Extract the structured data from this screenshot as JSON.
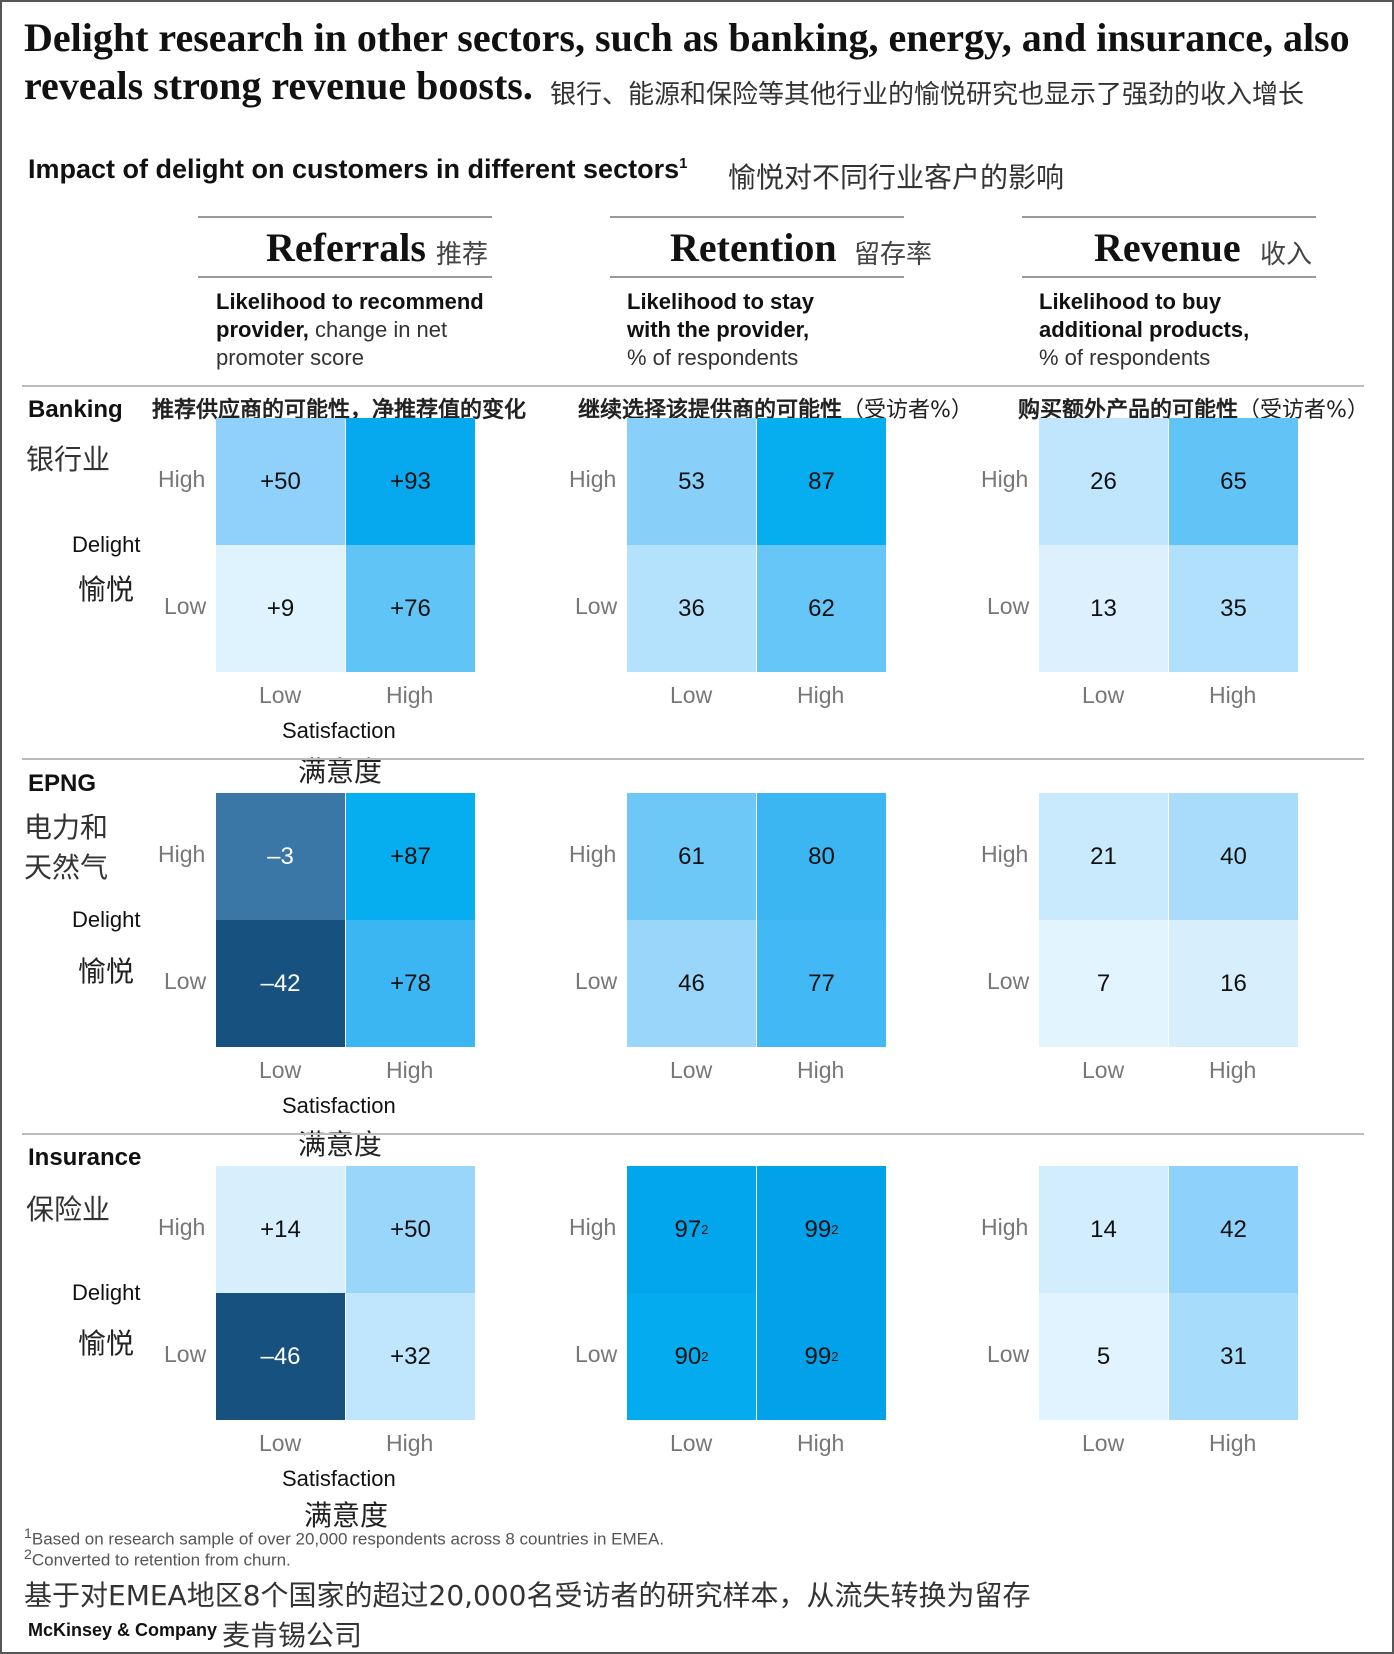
{
  "header": {
    "title_line1": "Delight research in other sectors, such as banking, energy, and insurance, also",
    "title_line2": "reveals strong revenue boosts.",
    "title_cn": "银行、能源和保险等其他行业的愉悦研究也显示了强劲的收入增长",
    "subtitle": "Impact of delight on customers in different sectors",
    "subtitle_sup": "1",
    "subtitle_cn": "愉悦对不同行业客户的影响"
  },
  "columns": [
    {
      "name": "Referrals",
      "name_cn": "推荐",
      "desc_bold_1": "Likelihood to recommend",
      "desc_bold_2": "provider,",
      "desc_rest_2": " change in net",
      "desc_line3": "promoter score"
    },
    {
      "name": "Retention",
      "name_cn": "留存率",
      "desc_bold_1": "Likelihood to stay",
      "desc_bold_2": "with the provider,",
      "desc_rest_2": "",
      "desc_line3": "% of respondents"
    },
    {
      "name": "Revenue",
      "name_cn": "收入",
      "desc_bold_1": "Likelihood to buy",
      "desc_bold_2": "additional products,",
      "desc_rest_2": "",
      "desc_line3": "% of respondents"
    }
  ],
  "row_labels_cn": {
    "col1": "推荐供应商的可能性，净推荐值的变化",
    "col2_bold": "继续选择该提供商的可能性",
    "col2_rest": "（受访者%）",
    "col3_bold": "购买额外产品的可能性",
    "col3_rest": "（受访者%）"
  },
  "axis": {
    "high": "High",
    "low": "Low",
    "delight": "Delight",
    "delight_cn": "愉悦",
    "satisfaction": "Satisfaction",
    "satisfaction_cn": "满意度"
  },
  "sectors": [
    {
      "name": "Banking",
      "name_cn": "银行业"
    },
    {
      "name": "EPNG",
      "name_cn": "电力和天然气"
    },
    {
      "name": "Insurance",
      "name_cn": "保险业"
    }
  ],
  "chart_data": {
    "type": "heatmap",
    "title": "Impact of delight on customers in different sectors",
    "x_axis": "Satisfaction",
    "y_axis": "Delight",
    "x_categories": [
      "Low",
      "High"
    ],
    "y_categories": [
      "High",
      "Low"
    ],
    "panels": [
      {
        "sector": "Banking",
        "metric": "Referrals",
        "cells": [
          [
            "+50",
            "+93"
          ],
          [
            "+9",
            "+76"
          ]
        ],
        "values": [
          [
            50,
            93
          ],
          [
            9,
            76
          ]
        ],
        "fills": [
          [
            "#8fd1fb",
            "#06a8ee"
          ],
          [
            "#dff3fe",
            "#60c4f6"
          ]
        ],
        "text": [
          [
            "#111",
            "#111"
          ],
          [
            "#111",
            "#111"
          ]
        ],
        "sup": [
          [
            "",
            ""
          ],
          [
            "",
            ""
          ]
        ]
      },
      {
        "sector": "Banking",
        "metric": "Retention",
        "cells": [
          [
            "53",
            "87"
          ],
          [
            "36",
            "62"
          ]
        ],
        "values": [
          [
            53,
            87
          ],
          [
            36,
            62
          ]
        ],
        "fills": [
          [
            "#88cffa",
            "#06aef0"
          ],
          [
            "#b4e2fc",
            "#66c6f7"
          ]
        ],
        "text": [
          [
            "#111",
            "#111"
          ],
          [
            "#111",
            "#111"
          ]
        ],
        "sup": [
          [
            "",
            ""
          ],
          [
            "",
            ""
          ]
        ]
      },
      {
        "sector": "Banking",
        "metric": "Revenue",
        "cells": [
          [
            "26",
            "65"
          ],
          [
            "13",
            "35"
          ]
        ],
        "values": [
          [
            26,
            65
          ],
          [
            13,
            35
          ]
        ],
        "fills": [
          [
            "#bfe6fc",
            "#62c4f6"
          ],
          [
            "#dcf1fd",
            "#b0e0fb"
          ]
        ],
        "text": [
          [
            "#111",
            "#111"
          ],
          [
            "#111",
            "#111"
          ]
        ],
        "sup": [
          [
            "",
            ""
          ],
          [
            "",
            ""
          ]
        ]
      },
      {
        "sector": "EPNG",
        "metric": "Referrals",
        "cells": [
          [
            "–3",
            "+87"
          ],
          [
            "–42",
            "+78"
          ]
        ],
        "values": [
          [
            -3,
            87
          ],
          [
            -42,
            78
          ]
        ],
        "fills": [
          [
            "#3a76a6",
            "#06aef0"
          ],
          [
            "#16517f",
            "#3cb6f3"
          ]
        ],
        "text": [
          [
            "#ffffff",
            "#111"
          ],
          [
            "#ffffff",
            "#111"
          ]
        ],
        "sup": [
          [
            "",
            ""
          ],
          [
            "",
            ""
          ]
        ]
      },
      {
        "sector": "EPNG",
        "metric": "Retention",
        "cells": [
          [
            "61",
            "80"
          ],
          [
            "46",
            "77"
          ]
        ],
        "values": [
          [
            61,
            80
          ],
          [
            46,
            77
          ]
        ],
        "fills": [
          [
            "#6ec8f7",
            "#3cb6f3"
          ],
          [
            "#9ad6fa",
            "#42b9f4"
          ]
        ],
        "text": [
          [
            "#111",
            "#111"
          ],
          [
            "#111",
            "#111"
          ]
        ],
        "sup": [
          [
            "",
            ""
          ],
          [
            "",
            ""
          ]
        ]
      },
      {
        "sector": "EPNG",
        "metric": "Revenue",
        "cells": [
          [
            "21",
            "40"
          ],
          [
            "7",
            "16"
          ]
        ],
        "values": [
          [
            21,
            40
          ],
          [
            7,
            16
          ]
        ],
        "fills": [
          [
            "#c9eafd",
            "#a9dcfb"
          ],
          [
            "#e2f4fe",
            "#d7effd"
          ]
        ],
        "text": [
          [
            "#111",
            "#111"
          ],
          [
            "#111",
            "#111"
          ]
        ],
        "sup": [
          [
            "",
            ""
          ],
          [
            "",
            ""
          ]
        ]
      },
      {
        "sector": "Insurance",
        "metric": "Referrals",
        "cells": [
          [
            "+14",
            "+50"
          ],
          [
            "–46",
            "+32"
          ]
        ],
        "values": [
          [
            14,
            50
          ],
          [
            -46,
            32
          ]
        ],
        "fills": [
          [
            "#d7effd",
            "#9ad6fa"
          ],
          [
            "#16517f",
            "#bfe6fc"
          ]
        ],
        "text": [
          [
            "#111",
            "#111"
          ],
          [
            "#ffffff",
            "#111"
          ]
        ],
        "sup": [
          [
            "",
            ""
          ],
          [
            "",
            ""
          ]
        ]
      },
      {
        "sector": "Insurance",
        "metric": "Retention",
        "cells": [
          [
            "97",
            "99"
          ],
          [
            "90",
            "99"
          ]
        ],
        "values": [
          [
            97,
            99
          ],
          [
            90,
            99
          ]
        ],
        "fills": [
          [
            "#02a6ed",
            "#02a2ea"
          ],
          [
            "#05abef",
            "#02a2ea"
          ]
        ],
        "text": [
          [
            "#111",
            "#111"
          ],
          [
            "#111",
            "#111"
          ]
        ],
        "sup": [
          [
            "2",
            "2"
          ],
          [
            "2",
            "2"
          ]
        ]
      },
      {
        "sector": "Insurance",
        "metric": "Revenue",
        "cells": [
          [
            "14",
            "42"
          ],
          [
            "5",
            "31"
          ]
        ],
        "values": [
          [
            14,
            42
          ],
          [
            5,
            31
          ]
        ],
        "fills": [
          [
            "#d2edfd",
            "#8ed1fa"
          ],
          [
            "#e1f3fe",
            "#a8dcfb"
          ]
        ],
        "text": [
          [
            "#111",
            "#111"
          ],
          [
            "#111",
            "#111"
          ]
        ],
        "sup": [
          [
            "",
            ""
          ],
          [
            "",
            ""
          ]
        ]
      }
    ]
  },
  "footer": {
    "note1_sup": "1",
    "note1": "Based on research sample of over 20,000 respondents across 8 countries in EMEA.",
    "note2_sup": "2",
    "note2": "Converted to retention from churn.",
    "note_cn": "基于对EMEA地区8个国家的超过20,000名受访者的研究样本，从流失转换为留存",
    "brand": "McKinsey & Company",
    "brand_cn": "麦肯锡公司"
  }
}
